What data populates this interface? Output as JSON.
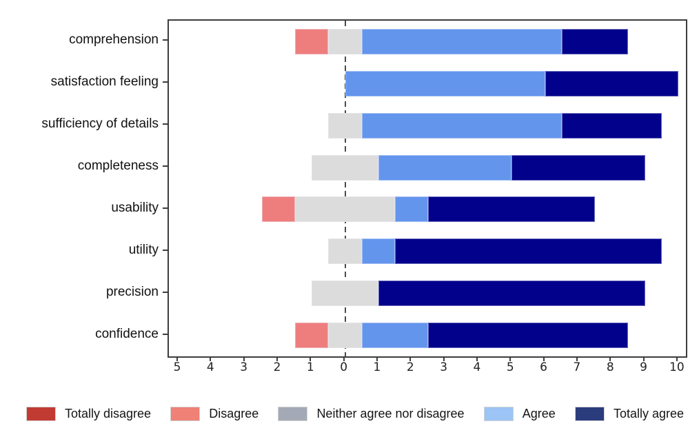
{
  "chart_data": {
    "type": "bar",
    "variant": "diverging-stacked-likert",
    "title": "",
    "xlabel": "",
    "ylabel": "",
    "categories": [
      "comprehension",
      "satisfaction feeling",
      "sufficiency of details",
      "completeness",
      "usability",
      "utility",
      "precision",
      "confidence"
    ],
    "series": [
      {
        "name": "Totally disagree",
        "bar_color": "#c23b33",
        "legend_color": "#c23b33",
        "values": [
          0,
          0,
          0,
          0,
          0,
          0,
          0,
          0
        ]
      },
      {
        "name": "Disagree",
        "bar_color": "#ee7e7e",
        "legend_color": "#ef8177",
        "values": [
          1,
          0,
          0,
          0,
          1,
          0,
          0,
          1
        ]
      },
      {
        "name": "Neither agree nor disagree",
        "bar_color": "#dcdcdc",
        "legend_color": "#a3aab6",
        "values": [
          1,
          0,
          1,
          2,
          3,
          1,
          2,
          1
        ]
      },
      {
        "name": "Agree",
        "bar_color": "#6495ed",
        "legend_color": "#9cc4f4",
        "values": [
          6,
          6,
          6,
          4,
          1,
          1,
          0,
          2
        ]
      },
      {
        "name": "Totally agree",
        "bar_color": "#01018b",
        "legend_color": "#2b3c7d",
        "values": [
          2,
          4,
          3,
          4,
          5,
          8,
          8,
          6
        ]
      }
    ],
    "center_rule": "neither-category-split-half-around-zero",
    "stack_offsets_note": "left edge of each row = -(totally_disagree + disagree + neither/2)",
    "x_ticks": [
      {
        "value": -5,
        "label": "5"
      },
      {
        "value": -4,
        "label": "4"
      },
      {
        "value": -3,
        "label": "3"
      },
      {
        "value": -2,
        "label": "2"
      },
      {
        "value": -1,
        "label": "1"
      },
      {
        "value": 0,
        "label": "0"
      },
      {
        "value": 1,
        "label": "1"
      },
      {
        "value": 2,
        "label": "2"
      },
      {
        "value": 3,
        "label": "3"
      },
      {
        "value": 4,
        "label": "4"
      },
      {
        "value": 5,
        "label": "5"
      },
      {
        "value": 6,
        "label": "6"
      },
      {
        "value": 7,
        "label": "7"
      },
      {
        "value": 8,
        "label": "8"
      },
      {
        "value": 9,
        "label": "9"
      },
      {
        "value": 10,
        "label": "10"
      }
    ],
    "xlim": [
      -5.29,
      10.23
    ],
    "grid": false,
    "zero_line": {
      "style": "dashed",
      "color": "#4a4a4a"
    },
    "legend_position": "bottom",
    "axis_color": "#3c3c3c"
  }
}
